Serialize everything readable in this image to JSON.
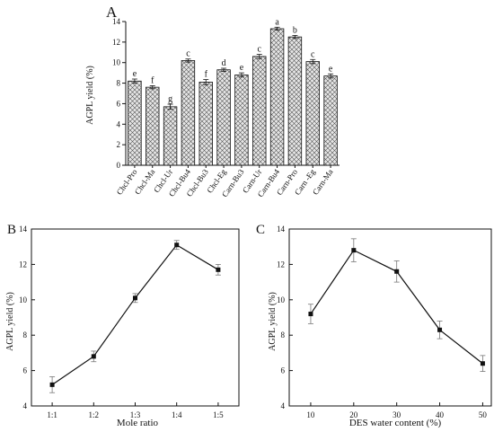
{
  "figure": {
    "colors": {
      "axis": "#111111",
      "bar_fill": "#e6e6e6",
      "hatch": "#555555"
    }
  },
  "chart_data": [
    {
      "panel": "A",
      "type": "bar",
      "ylabel": "AGPL yield (%)",
      "xlabel": "",
      "ylim": [
        0,
        14
      ],
      "yticks": [
        0,
        2,
        4,
        6,
        8,
        10,
        12,
        14
      ],
      "categories": [
        "Chcl-Pro",
        "Chcl-Ma",
        "Chcl-Ur",
        "Chcl-Bu4",
        "Chcl-Bu3",
        "Chcl-Eg",
        "Carn-Bu3",
        "Carn-Ur",
        "Carn-Bu4",
        "Carn-Pro",
        "Carn -Eg",
        "Carn-Ma"
      ],
      "values": [
        8.2,
        7.6,
        5.7,
        10.2,
        8.1,
        9.3,
        8.8,
        10.6,
        13.3,
        12.5,
        10.1,
        8.7
      ],
      "errors": [
        0.2,
        0.15,
        0.25,
        0.15,
        0.25,
        0.15,
        0.2,
        0.2,
        0.15,
        0.15,
        0.2,
        0.2
      ],
      "letters": [
        "e",
        "f",
        "g",
        "c",
        "f",
        "d",
        "e",
        "c",
        "a",
        "b",
        "c",
        "e"
      ],
      "grid": false
    },
    {
      "panel": "B",
      "type": "line",
      "ylabel": "AGPL yield (%)",
      "xlabel": "Mole ratio",
      "categories": [
        "1:1",
        "1:2",
        "1:3",
        "1:4",
        "1:5"
      ],
      "values": [
        5.2,
        6.8,
        10.1,
        13.1,
        11.7
      ],
      "errors": [
        0.45,
        0.3,
        0.25,
        0.25,
        0.3
      ],
      "ylim": [
        4,
        14
      ],
      "yticks": [
        4,
        6,
        8,
        10,
        12,
        14
      ],
      "grid": false
    },
    {
      "panel": "C",
      "type": "line",
      "ylabel": "AGPL yield (%)",
      "xlabel": "DES water content (%)",
      "x": [
        10,
        20,
        30,
        40,
        50
      ],
      "values": [
        9.2,
        12.8,
        11.6,
        8.3,
        6.4
      ],
      "errors": [
        0.55,
        0.65,
        0.6,
        0.5,
        0.45
      ],
      "xlim": [
        5,
        52
      ],
      "xticks": [
        10,
        20,
        30,
        40,
        50
      ],
      "ylim": [
        4,
        14
      ],
      "yticks": [
        4,
        6,
        8,
        10,
        12,
        14
      ],
      "grid": false
    }
  ]
}
